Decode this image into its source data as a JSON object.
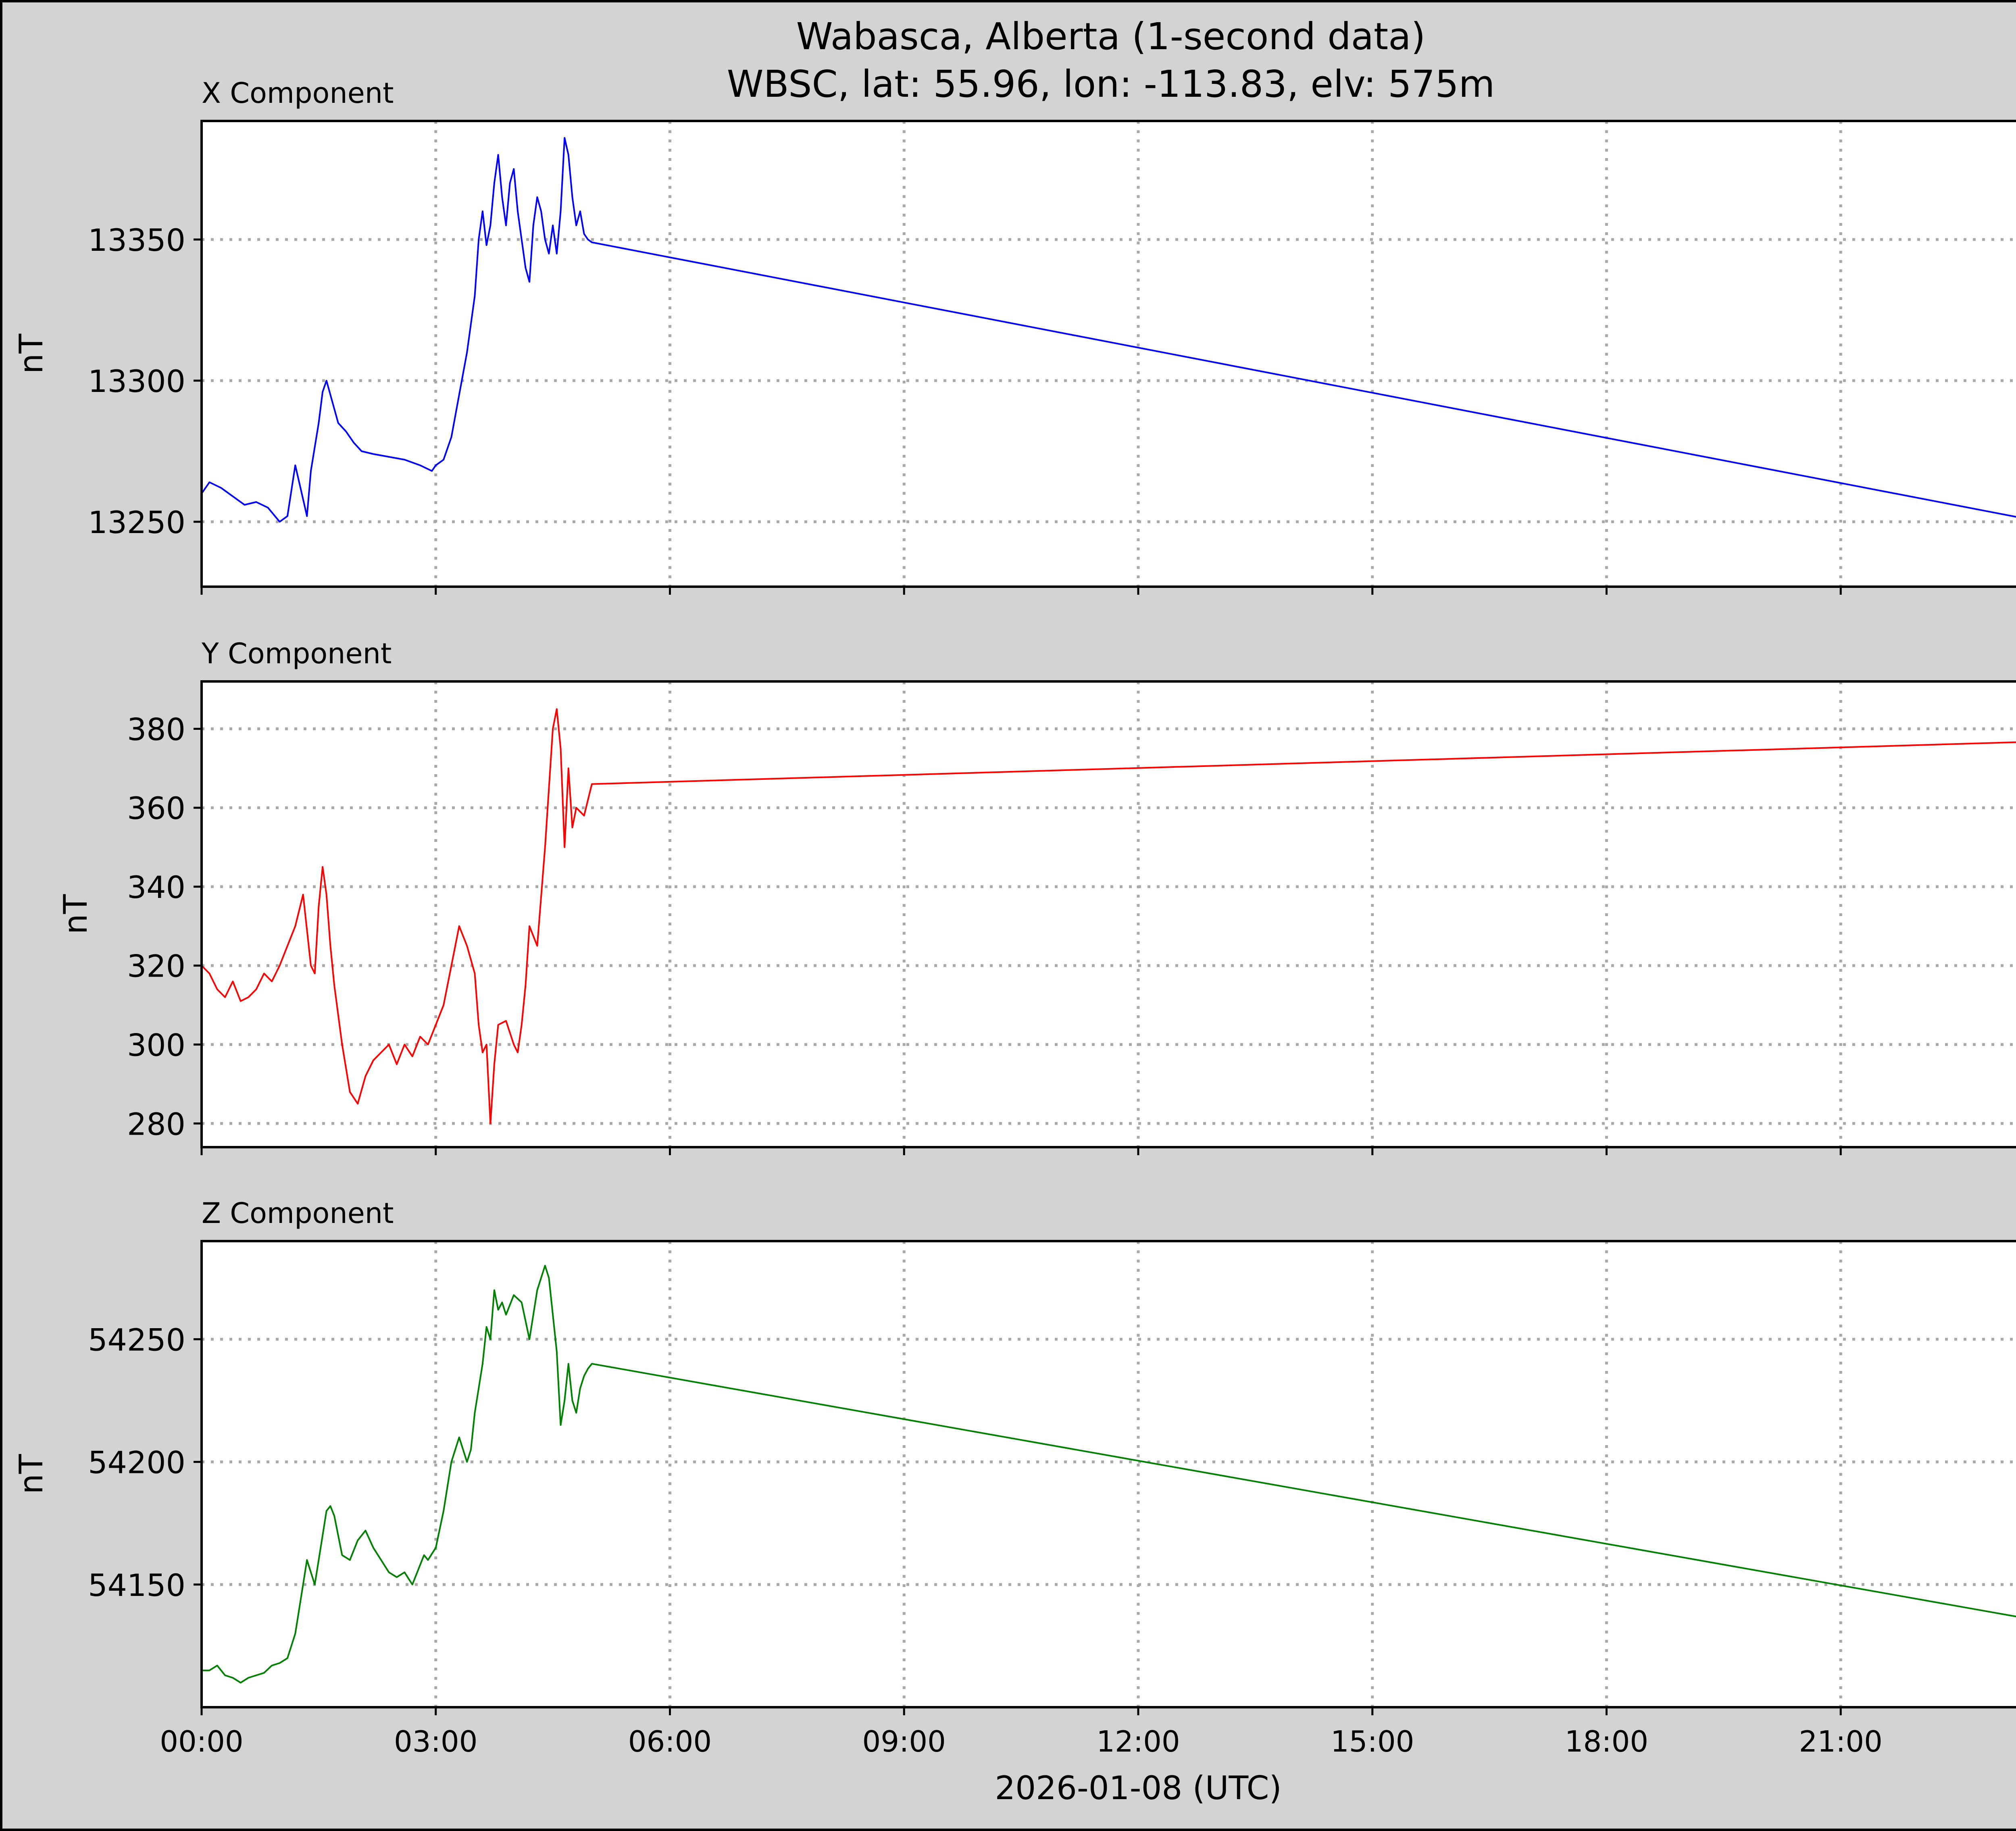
{
  "figure": {
    "title_line1": "Wabasca, Alberta (1-second data)",
    "title_line2": "WBSC, lat: 55.96, lon: -113.83, elv: 575m",
    "background": "#d3d3d3",
    "xlabel": "2026-01-08 (UTC)",
    "x_tick_labels": [
      "00:00",
      "03:00",
      "06:00",
      "09:00",
      "12:00",
      "15:00",
      "18:00",
      "21:00"
    ]
  },
  "chart_data": [
    {
      "type": "line",
      "panel_title": "X Component",
      "ylabel": "nT",
      "color": "#0000ff",
      "xlim": [
        0,
        24
      ],
      "ylim": [
        13227,
        13392
      ],
      "y_ticks": [
        13250,
        13300,
        13350
      ],
      "grid": "dotted",
      "x_unit": "hours since 2026-01-08 00:00 UTC",
      "x": [
        0.0,
        0.1,
        0.25,
        0.4,
        0.55,
        0.7,
        0.85,
        1.0,
        1.1,
        1.2,
        1.3,
        1.35,
        1.4,
        1.5,
        1.55,
        1.6,
        1.7,
        1.75,
        1.85,
        1.95,
        2.05,
        2.2,
        2.4,
        2.6,
        2.8,
        2.95,
        3.0,
        3.1,
        3.2,
        3.3,
        3.4,
        3.5,
        3.55,
        3.6,
        3.65,
        3.7,
        3.75,
        3.8,
        3.85,
        3.9,
        3.95,
        4.0,
        4.05,
        4.1,
        4.15,
        4.2,
        4.25,
        4.3,
        4.35,
        4.4,
        4.45,
        4.5,
        4.55,
        4.6,
        4.65,
        4.7,
        4.75,
        4.8,
        4.85,
        4.9,
        4.95,
        5.0,
        23.95,
        24.0
      ],
      "values": [
        13260,
        13264,
        13262,
        13259,
        13256,
        13257,
        13255,
        13250,
        13252,
        13270,
        13258,
        13252,
        13268,
        13285,
        13296,
        13300,
        13290,
        13285,
        13282,
        13278,
        13275,
        13274,
        13273,
        13272,
        13270,
        13268,
        13270,
        13272,
        13280,
        13295,
        13310,
        13330,
        13350,
        13360,
        13348,
        13355,
        13370,
        13380,
        13365,
        13355,
        13370,
        13375,
        13360,
        13350,
        13340,
        13335,
        13355,
        13365,
        13360,
        13350,
        13345,
        13355,
        13345,
        13360,
        13386,
        13380,
        13365,
        13355,
        13360,
        13352,
        13350,
        13349,
        13248,
        13237
      ]
    },
    {
      "type": "line",
      "panel_title": "Y Component",
      "ylabel": "nT",
      "color": "#ff0000",
      "xlim": [
        0,
        24
      ],
      "ylim": [
        274,
        392
      ],
      "y_ticks": [
        280,
        300,
        320,
        340,
        360,
        380
      ],
      "grid": "dotted",
      "x_unit": "hours since 2026-01-08 00:00 UTC",
      "x": [
        0.0,
        0.1,
        0.2,
        0.3,
        0.4,
        0.5,
        0.6,
        0.7,
        0.8,
        0.9,
        1.0,
        1.1,
        1.2,
        1.3,
        1.4,
        1.45,
        1.5,
        1.55,
        1.6,
        1.65,
        1.7,
        1.8,
        1.9,
        2.0,
        2.1,
        2.2,
        2.3,
        2.4,
        2.5,
        2.6,
        2.7,
        2.8,
        2.9,
        3.0,
        3.1,
        3.2,
        3.3,
        3.4,
        3.5,
        3.55,
        3.6,
        3.65,
        3.7,
        3.75,
        3.8,
        3.9,
        4.0,
        4.05,
        4.1,
        4.15,
        4.2,
        4.3,
        4.4,
        4.5,
        4.55,
        4.6,
        4.65,
        4.7,
        4.75,
        4.8,
        4.9,
        5.0,
        23.95,
        24.0
      ],
      "values": [
        320,
        318,
        314,
        312,
        316,
        311,
        312,
        314,
        318,
        316,
        320,
        325,
        330,
        338,
        320,
        318,
        335,
        345,
        338,
        325,
        315,
        300,
        288,
        285,
        292,
        296,
        298,
        300,
        295,
        300,
        297,
        302,
        300,
        305,
        310,
        320,
        330,
        325,
        318,
        305,
        298,
        300,
        280,
        295,
        305,
        306,
        300,
        298,
        305,
        315,
        330,
        325,
        350,
        380,
        385,
        375,
        350,
        370,
        355,
        360,
        358,
        366,
        377,
        370
      ]
    },
    {
      "type": "line",
      "panel_title": "Z Component",
      "ylabel": "nT",
      "color": "#008000",
      "xlim": [
        0,
        24
      ],
      "ylim": [
        54100,
        54290
      ],
      "y_ticks": [
        54150,
        54200,
        54250
      ],
      "grid": "dotted",
      "x_unit": "hours since 2026-01-08 00:00 UTC",
      "x": [
        0.0,
        0.1,
        0.2,
        0.3,
        0.4,
        0.5,
        0.6,
        0.7,
        0.8,
        0.9,
        1.0,
        1.1,
        1.2,
        1.3,
        1.35,
        1.4,
        1.45,
        1.5,
        1.55,
        1.6,
        1.65,
        1.7,
        1.8,
        1.9,
        2.0,
        2.1,
        2.2,
        2.3,
        2.4,
        2.5,
        2.6,
        2.7,
        2.8,
        2.85,
        2.9,
        3.0,
        3.1,
        3.2,
        3.3,
        3.4,
        3.45,
        3.5,
        3.6,
        3.65,
        3.7,
        3.75,
        3.8,
        3.85,
        3.9,
        4.0,
        4.1,
        4.2,
        4.3,
        4.4,
        4.45,
        4.5,
        4.55,
        4.6,
        4.65,
        4.7,
        4.75,
        4.8,
        4.85,
        4.9,
        4.95,
        5.0,
        23.95,
        24.0
      ],
      "values": [
        54115,
        54115,
        54117,
        54113,
        54112,
        54110,
        54112,
        54113,
        54114,
        54117,
        54118,
        54120,
        54130,
        54150,
        54160,
        54155,
        54150,
        54160,
        54170,
        54180,
        54182,
        54178,
        54162,
        54160,
        54168,
        54172,
        54165,
        54160,
        54155,
        54153,
        54155,
        54150,
        54158,
        54162,
        54160,
        54165,
        54180,
        54200,
        54210,
        54200,
        54205,
        54220,
        54240,
        54255,
        54250,
        54270,
        54262,
        54265,
        54260,
        54268,
        54265,
        54250,
        54270,
        54280,
        54275,
        54260,
        54245,
        54215,
        54225,
        54240,
        54225,
        54220,
        54230,
        54235,
        54238,
        54240,
        54133,
        54115
      ]
    }
  ]
}
